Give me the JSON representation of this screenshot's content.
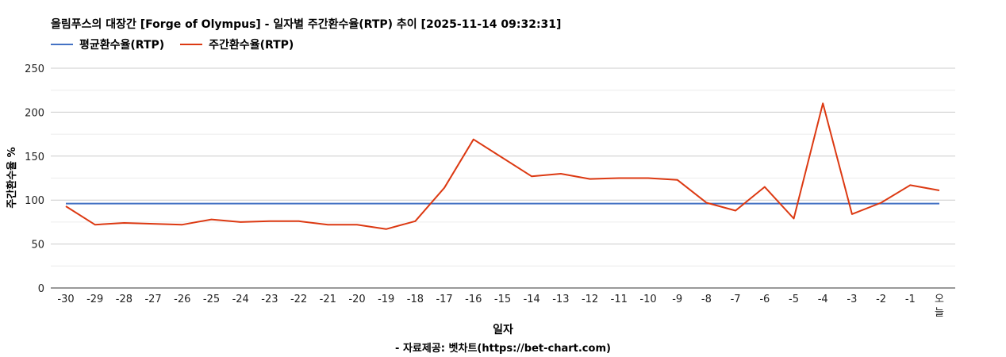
{
  "title": "올림푸스의 대장간 [Forge of Olympus] - 일자별 주간환수율(RTP) 추이 [2025-11-14 09:32:31]",
  "source_note": "- 자료제공: 벳차트(https://bet-chart.com)",
  "chart_data": {
    "type": "line",
    "title": "올림푸스의 대장간 [Forge of Olympus] - 일자별 주간환수율(RTP) 추이 [2025-11-14 09:32:31]",
    "xlabel": "일자",
    "ylabel": "주간환수율 %",
    "ylim": [
      0,
      250
    ],
    "yticks": [
      0,
      50,
      100,
      150,
      200,
      250
    ],
    "grid": true,
    "legend_position": "top-left",
    "categories": [
      "-30",
      "-29",
      "-28",
      "-27",
      "-26",
      "-25",
      "-24",
      "-23",
      "-22",
      "-21",
      "-20",
      "-19",
      "-18",
      "-17",
      "-16",
      "-15",
      "-14",
      "-13",
      "-12",
      "-11",
      "-10",
      "-9",
      "-8",
      "-7",
      "-6",
      "-5",
      "-4",
      "-3",
      "-2",
      "-1",
      "오늘"
    ],
    "series": [
      {
        "name": "평균환수율(RTP)",
        "color": "#4472c4",
        "values": [
          96,
          96,
          96,
          96,
          96,
          96,
          96,
          96,
          96,
          96,
          96,
          96,
          96,
          96,
          96,
          96,
          96,
          96,
          96,
          96,
          96,
          96,
          96,
          96,
          96,
          96,
          96,
          96,
          96,
          96,
          96
        ]
      },
      {
        "name": "주간환수율(RTP)",
        "color": "#dc3912",
        "values": [
          93,
          72,
          74,
          73,
          72,
          78,
          75,
          76,
          76,
          72,
          72,
          67,
          76,
          114,
          169,
          148,
          127,
          130,
          124,
          125,
          125,
          123,
          97,
          88,
          115,
          79,
          210,
          84,
          97,
          117,
          111
        ]
      }
    ]
  }
}
